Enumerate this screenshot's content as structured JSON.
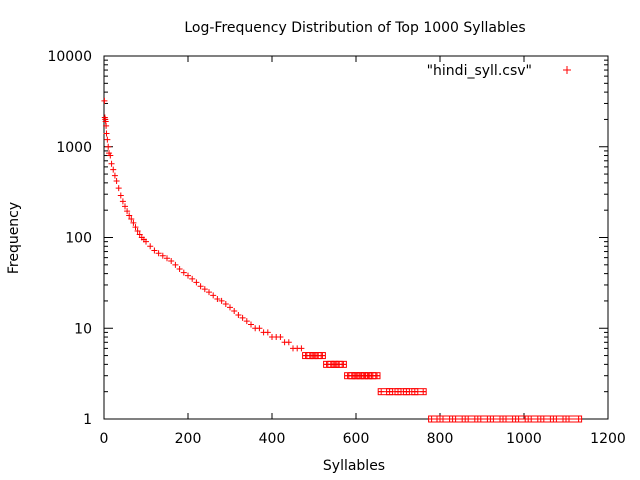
{
  "chart_data": {
    "type": "scatter",
    "title": "Log-Frequency Distribution of Top 1000 Syllables",
    "xlabel": "Syllables",
    "ylabel": "Frequency",
    "xlim": [
      0,
      1200
    ],
    "ylim": [
      1,
      10000
    ],
    "yscale": "log",
    "grid": false,
    "legend_position": "top-right",
    "x_ticks": [
      "0",
      "200",
      "400",
      "600",
      "800",
      "1000",
      "1200"
    ],
    "y_ticks": [
      "1",
      "10",
      "100",
      "1000",
      "10000"
    ],
    "marker": "plus",
    "series": [
      {
        "name": "\"hindi_syll.csv\"",
        "color": "#ff0000",
        "x": [
          1,
          2,
          3,
          4,
          5,
          6,
          8,
          10,
          12,
          15,
          18,
          22,
          26,
          30,
          35,
          40,
          45,
          50,
          55,
          60,
          65,
          70,
          75,
          80,
          85,
          90,
          95,
          100,
          110,
          120,
          130,
          140,
          150,
          160,
          170,
          180,
          190,
          200,
          210,
          220,
          230,
          240,
          250,
          260,
          270,
          280,
          290,
          300,
          310,
          320,
          330,
          340,
          350,
          360,
          370,
          380,
          390,
          400,
          410,
          420,
          430,
          440,
          450,
          460,
          470,
          480,
          490,
          500,
          510,
          520,
          530,
          540,
          550,
          560,
          570,
          580,
          590,
          600,
          610,
          620,
          630,
          640,
          650,
          660,
          680,
          700,
          720,
          740,
          760,
          780,
          800,
          830,
          860,
          890,
          920,
          950,
          980,
          1010,
          1040,
          1070,
          1100,
          1130
        ],
        "y": [
          3200,
          2100,
          2000,
          1900,
          1700,
          1400,
          1200,
          1000,
          850,
          800,
          650,
          560,
          480,
          420,
          350,
          290,
          250,
          220,
          195,
          175,
          160,
          145,
          130,
          118,
          108,
          100,
          95,
          90,
          80,
          72,
          67,
          63,
          59,
          55,
          50,
          45,
          41,
          38,
          35,
          32,
          29,
          27,
          25,
          23,
          21,
          20,
          18.5,
          17,
          15.5,
          14,
          13,
          12,
          11,
          10,
          10,
          9,
          9,
          8,
          8,
          8,
          7,
          7,
          6,
          6,
          6,
          5,
          5,
          5,
          5,
          5,
          4,
          4,
          4,
          4,
          4,
          3,
          3,
          3,
          3,
          3,
          3,
          3,
          3,
          2,
          2,
          2,
          2,
          2,
          2,
          1,
          1,
          1,
          1,
          1,
          1,
          1,
          1,
          1,
          1,
          1,
          1,
          1
        ]
      }
    ]
  }
}
